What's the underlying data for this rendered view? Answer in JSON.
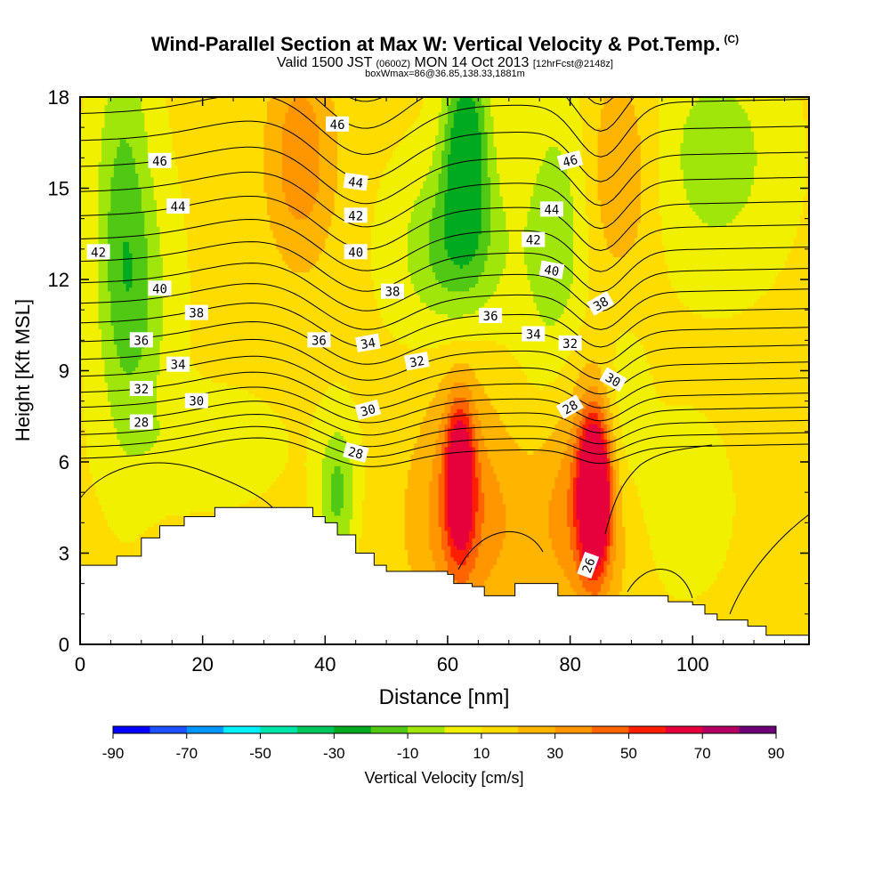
{
  "header": {
    "title": "Wind-Parallel Section at Max W: Vertical Velocity & Pot.Temp.",
    "title_mark": "(C)",
    "valid_prefix": "Valid 1500 JST",
    "valid_utc": "(0600Z)",
    "valid_date": "MON 14 Oct 2013",
    "forecast": "[12hrFcst@2148z]",
    "box_info": "boxWmax=86@36.85,138.33,1881m"
  },
  "chart_data": {
    "type": "heatmap",
    "xlabel": "Distance [nm]",
    "ylabel": "Height [Kft MSL]",
    "xlim": [
      0,
      119
    ],
    "ylim": [
      0,
      18
    ],
    "x_ticks": [
      0,
      20,
      40,
      60,
      80,
      100
    ],
    "y_ticks": [
      0,
      3,
      6,
      9,
      12,
      15,
      18
    ],
    "colorbar": {
      "label": "Vertical Velocity [cm/s]",
      "tick_labels": [
        "-90",
        "-70",
        "-50",
        "-30",
        "-10",
        "10",
        "30",
        "50",
        "70",
        "90"
      ],
      "colors": [
        "#0000ff",
        "#1e50ff",
        "#0096ff",
        "#00f0ff",
        "#00e6a8",
        "#00c85a",
        "#00aa1e",
        "#50c814",
        "#a0e60a",
        "#f0f000",
        "#ffdc00",
        "#ffb400",
        "#ff9600",
        "#ff6400",
        "#ff1e00",
        "#e6003c",
        "#b40064",
        "#6e0078"
      ]
    },
    "field_levels": [
      -30,
      -20,
      -10,
      0,
      10,
      20,
      30,
      40,
      50,
      60
    ],
    "field_colors": [
      "#00aa1e",
      "#50c814",
      "#a0e60a",
      "#f0f000",
      "#ffdc00",
      "#ffb400",
      "#ff9600",
      "#ff6400",
      "#ff1e00",
      "#e6003c"
    ],
    "features": [
      {
        "name": "updraft-core-62nm",
        "x": 62,
        "z": 5.5,
        "w_max": 60
      },
      {
        "name": "updraft-core-84nm",
        "x": 84,
        "z": 5.0,
        "w_max": 86
      },
      {
        "name": "downdraft-upper-62nm",
        "x": 63,
        "z": 16.5,
        "w_min": -40
      },
      {
        "name": "downdraft-lee-43nm",
        "x": 42,
        "z": 5.0,
        "w_min": -30
      }
    ],
    "terrain": [
      [
        0,
        2.6
      ],
      [
        6,
        2.9
      ],
      [
        10,
        3.5
      ],
      [
        13,
        3.9
      ],
      [
        17,
        4.2
      ],
      [
        22,
        4.5
      ],
      [
        35,
        4.5
      ],
      [
        38,
        4.2
      ],
      [
        40,
        4.0
      ],
      [
        42,
        3.6
      ],
      [
        45,
        3.0
      ],
      [
        48,
        2.6
      ],
      [
        50,
        2.4
      ],
      [
        60,
        2.3
      ],
      [
        61,
        2.0
      ],
      [
        64,
        1.9
      ],
      [
        66,
        1.6
      ],
      [
        70,
        1.6
      ],
      [
        71,
        2.0
      ],
      [
        77,
        2.0
      ],
      [
        78,
        1.6
      ],
      [
        91,
        1.6
      ],
      [
        96,
        1.4
      ],
      [
        100,
        1.3
      ],
      [
        102,
        1.0
      ],
      [
        104,
        0.8
      ],
      [
        109,
        0.6
      ],
      [
        112,
        0.3
      ],
      [
        117,
        0.3
      ],
      [
        119,
        0.8
      ]
    ],
    "theta_labels": [
      {
        "text": "46",
        "x": 13,
        "z": 15.9,
        "rot": 0
      },
      {
        "text": "44",
        "x": 16,
        "z": 14.4,
        "rot": 0
      },
      {
        "text": "42",
        "x": 3,
        "z": 12.9,
        "rot": 0
      },
      {
        "text": "40",
        "x": 13,
        "z": 11.7,
        "rot": 0
      },
      {
        "text": "38",
        "x": 19,
        "z": 10.9,
        "rot": 0
      },
      {
        "text": "36",
        "x": 10,
        "z": 10.0,
        "rot": 0
      },
      {
        "text": "34",
        "x": 16,
        "z": 9.2,
        "rot": 0
      },
      {
        "text": "32",
        "x": 10,
        "z": 8.4,
        "rot": 0
      },
      {
        "text": "30",
        "x": 19,
        "z": 8.0,
        "rot": 0
      },
      {
        "text": "28",
        "x": 10,
        "z": 7.3,
        "rot": 0
      },
      {
        "text": "46",
        "x": 42,
        "z": 17.1,
        "rot": 0
      },
      {
        "text": "44",
        "x": 45,
        "z": 15.2,
        "rot": 8
      },
      {
        "text": "42",
        "x": 45,
        "z": 14.1,
        "rot": 0
      },
      {
        "text": "40",
        "x": 45,
        "z": 12.9,
        "rot": 0
      },
      {
        "text": "38",
        "x": 51,
        "z": 11.6,
        "rot": 0
      },
      {
        "text": "36",
        "x": 39,
        "z": 10.0,
        "rot": 0
      },
      {
        "text": "34",
        "x": 47,
        "z": 9.9,
        "rot": -10
      },
      {
        "text": "32",
        "x": 55,
        "z": 9.3,
        "rot": -10
      },
      {
        "text": "30",
        "x": 47,
        "z": 7.7,
        "rot": -15
      },
      {
        "text": "28",
        "x": 45,
        "z": 6.3,
        "rot": 15
      },
      {
        "text": "36",
        "x": 67,
        "z": 10.8,
        "rot": 0
      },
      {
        "text": "34",
        "x": 74,
        "z": 10.2,
        "rot": 0
      },
      {
        "text": "32",
        "x": 80,
        "z": 9.9,
        "rot": 0
      },
      {
        "text": "42",
        "x": 74,
        "z": 13.3,
        "rot": 0
      },
      {
        "text": "44",
        "x": 77,
        "z": 14.3,
        "rot": 0
      },
      {
        "text": "46",
        "x": 80,
        "z": 15.9,
        "rot": -15
      },
      {
        "text": "40",
        "x": 77,
        "z": 12.3,
        "rot": 10
      },
      {
        "text": "38",
        "x": 85,
        "z": 11.2,
        "rot": -30
      },
      {
        "text": "30",
        "x": 87,
        "z": 8.7,
        "rot": 30
      },
      {
        "text": "28",
        "x": 80,
        "z": 7.8,
        "rot": -30
      },
      {
        "text": "26",
        "x": 83,
        "z": 2.6,
        "rot": -70
      }
    ]
  }
}
